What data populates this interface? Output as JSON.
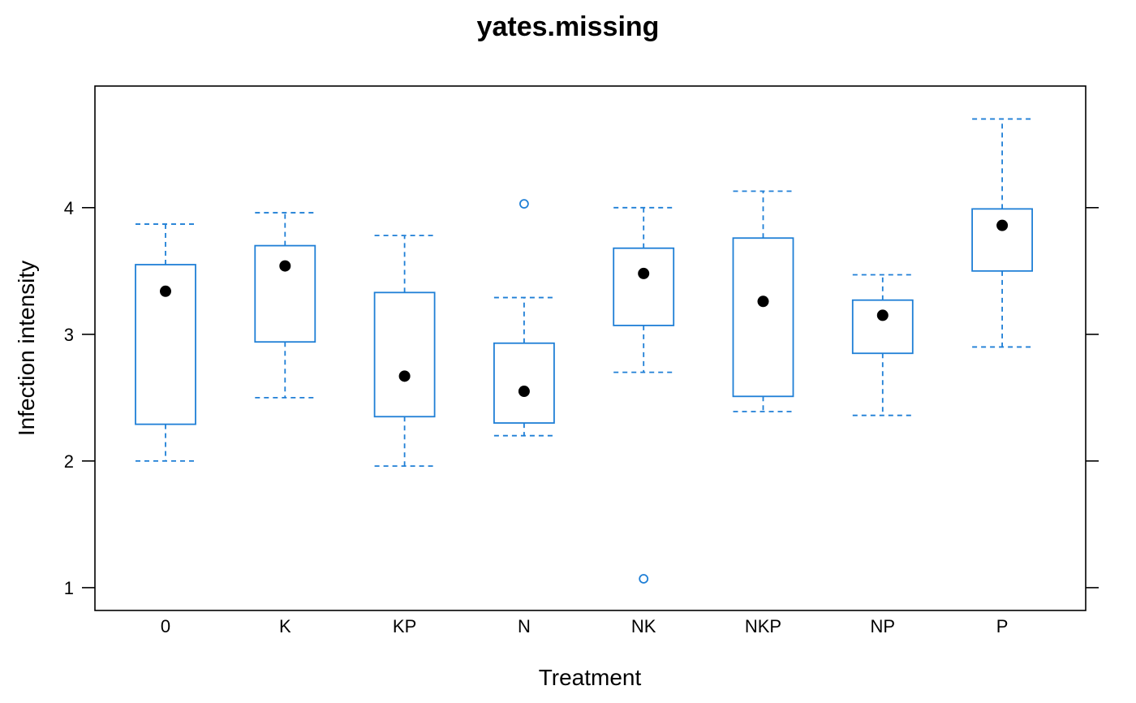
{
  "chart_data": {
    "type": "boxplot",
    "title": "yates.missing",
    "xlabel": "Treatment",
    "ylabel": "Infection intensity",
    "ylim": [
      0.82,
      4.96
    ],
    "yticks": [
      1,
      2,
      3,
      4
    ],
    "y_tick_labels": [
      "1",
      "2",
      "3",
      "4"
    ],
    "grid": false,
    "colors": {
      "box": "#1f7fd6",
      "median": "#000000",
      "axis": "#000000"
    },
    "categories": [
      "0",
      "K",
      "KP",
      "N",
      "NK",
      "NKP",
      "NP",
      "P"
    ],
    "boxes": [
      {
        "category": "0",
        "whisker_low": 2.0,
        "q1": 2.29,
        "median": 3.34,
        "q3": 3.55,
        "whisker_high": 3.87,
        "outliers": []
      },
      {
        "category": "K",
        "whisker_low": 2.5,
        "q1": 2.94,
        "median": 3.54,
        "q3": 3.7,
        "whisker_high": 3.96,
        "outliers": []
      },
      {
        "category": "KP",
        "whisker_low": 1.96,
        "q1": 2.35,
        "median": 2.67,
        "q3": 3.33,
        "whisker_high": 3.78,
        "outliers": []
      },
      {
        "category": "N",
        "whisker_low": 2.2,
        "q1": 2.3,
        "median": 2.55,
        "q3": 2.93,
        "whisker_high": 3.29,
        "outliers": [
          4.03
        ]
      },
      {
        "category": "NK",
        "whisker_low": 2.7,
        "q1": 3.07,
        "median": 3.48,
        "q3": 3.68,
        "whisker_high": 4.0,
        "outliers": [
          1.07
        ]
      },
      {
        "category": "NKP",
        "whisker_low": 2.39,
        "q1": 2.51,
        "median": 3.26,
        "q3": 3.76,
        "whisker_high": 4.13,
        "outliers": []
      },
      {
        "category": "NP",
        "whisker_low": 2.36,
        "q1": 2.85,
        "median": 3.15,
        "q3": 3.27,
        "whisker_high": 3.47,
        "outliers": []
      },
      {
        "category": "P",
        "whisker_low": 2.9,
        "q1": 3.5,
        "median": 3.86,
        "q3": 3.99,
        "whisker_high": 4.7,
        "outliers": []
      }
    ]
  }
}
